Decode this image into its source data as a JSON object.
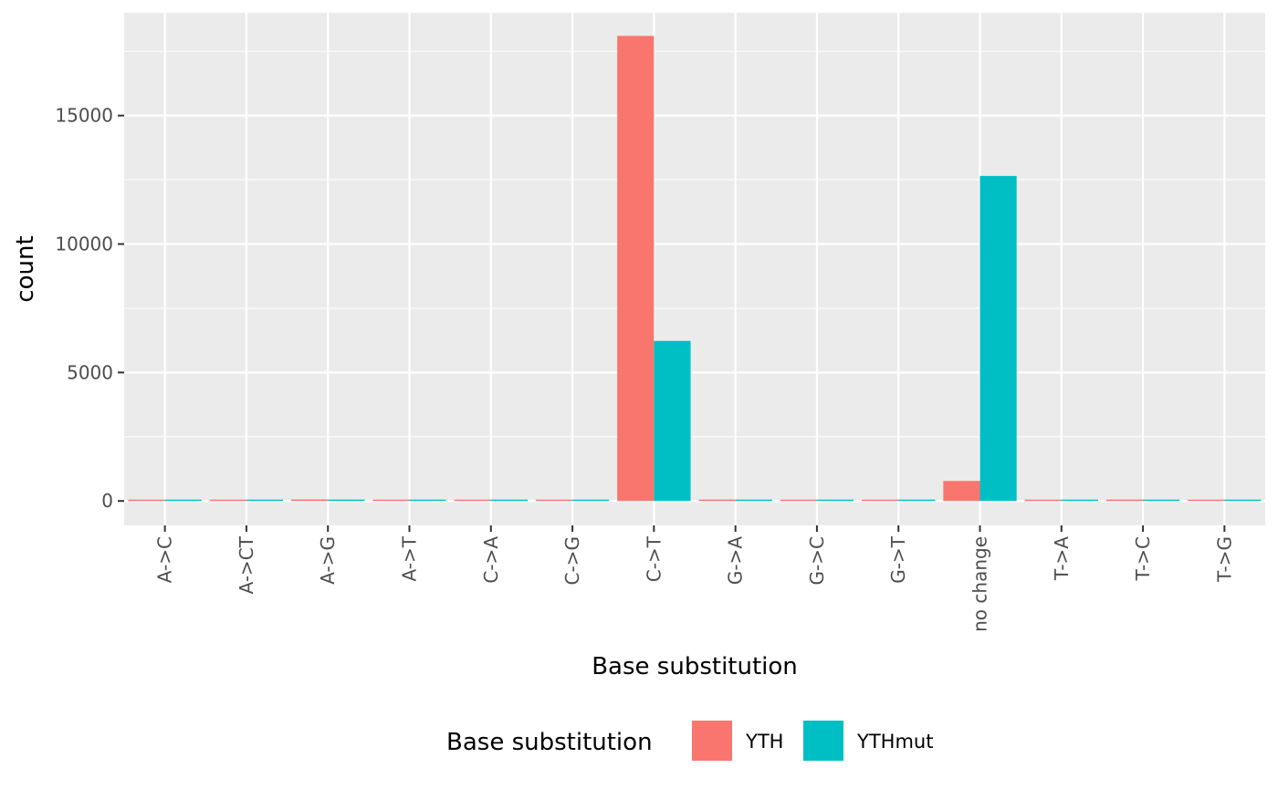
{
  "chart_data": {
    "type": "bar",
    "categories": [
      "A->C",
      "A->CT",
      "A->G",
      "A->T",
      "C->A",
      "C->G",
      "C->T",
      "G->A",
      "G->C",
      "G->T",
      "no change",
      "T->A",
      "T->C",
      "T->G"
    ],
    "series": [
      {
        "name": "YTH",
        "color": "#F8766D",
        "values": [
          5,
          5,
          60,
          5,
          5,
          5,
          18100,
          55,
          5,
          5,
          780,
          5,
          55,
          5
        ]
      },
      {
        "name": "YTHmut",
        "color": "#00BFC4",
        "values": [
          5,
          5,
          55,
          5,
          5,
          5,
          6230,
          50,
          5,
          5,
          12650,
          5,
          50,
          5
        ]
      }
    ],
    "xlabel": "Base substitution",
    "ylabel": "count",
    "yticks": [
      0,
      5000,
      10000,
      15000
    ],
    "ylim": [
      -950,
      19000
    ],
    "legend": {
      "title": "Base substitution",
      "position": "bottom"
    },
    "grid": true,
    "panel_color": "#EBEBEB"
  }
}
